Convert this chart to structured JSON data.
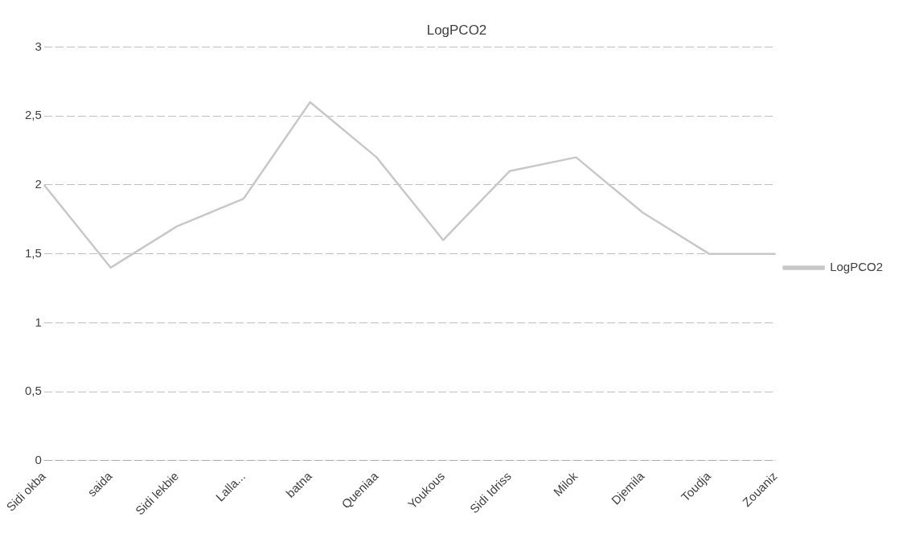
{
  "chart_data": {
    "type": "line",
    "title": "LogPCO2",
    "categories": [
      "Sidi okba",
      "saida",
      "Sidi lekbie",
      "Lalla...",
      "batna",
      "Queniaa",
      "Youkous",
      "Sidi Idriss",
      "Milok",
      "Djemila",
      "Toudja",
      "Zouaniz"
    ],
    "series": [
      {
        "name": "LogPCO2",
        "color": "#c8c8c8",
        "values": [
          2.0,
          1.4,
          1.7,
          1.9,
          2.6,
          2.2,
          1.6,
          2.1,
          2.2,
          1.8,
          1.5,
          1.5
        ]
      }
    ],
    "ylim": [
      0,
      3
    ],
    "yticks": [
      0,
      {
        "value": 0.5,
        "label": "0,5"
      },
      1,
      {
        "value": 1.5,
        "label": "1,5"
      },
      2,
      {
        "value": 2.5,
        "label": "2,5"
      },
      3
    ],
    "grid": "y",
    "legend": "right",
    "marker": "none",
    "line_style": "solid"
  }
}
